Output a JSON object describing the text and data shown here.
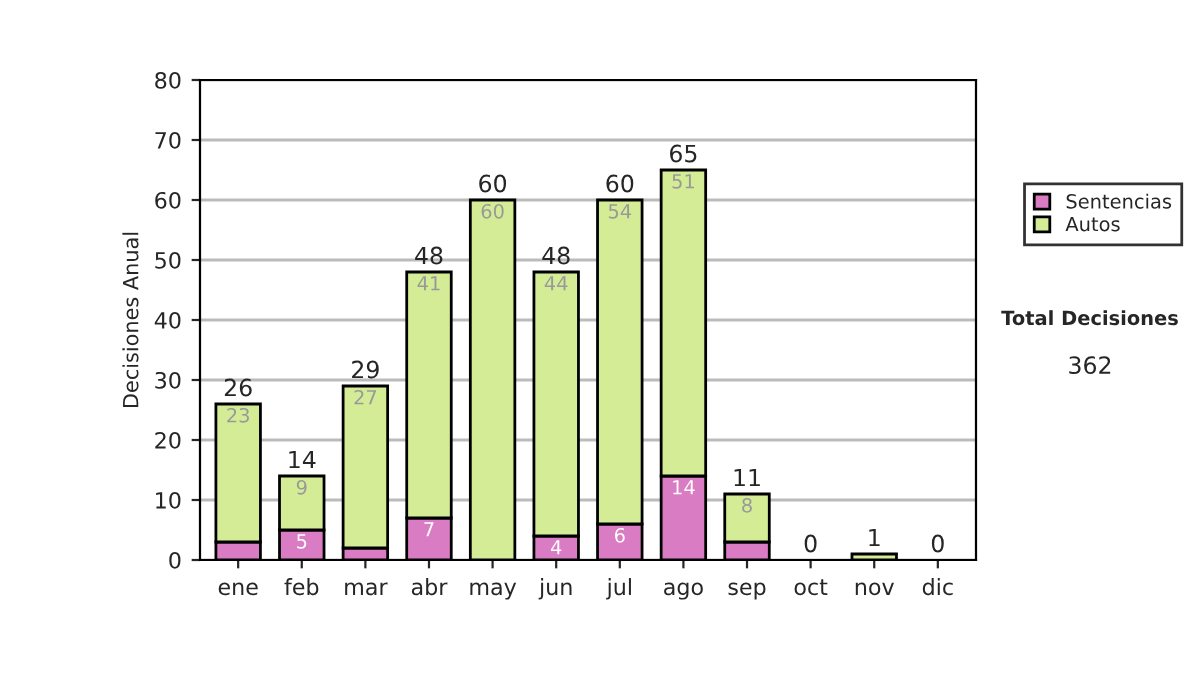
{
  "chart_data": {
    "type": "bar",
    "stacked": true,
    "ylabel": "Decisiones Anual",
    "categories": [
      "ene",
      "feb",
      "mar",
      "abr",
      "may",
      "jun",
      "jul",
      "ago",
      "sep",
      "oct",
      "nov",
      "dic"
    ],
    "series": [
      {
        "name": "Sentencias",
        "color": "#da7cc3",
        "values": [
          3,
          5,
          2,
          7,
          0,
          4,
          6,
          14,
          3,
          0,
          0,
          0
        ],
        "value_labels": [
          null,
          "5",
          null,
          "7",
          null,
          "4",
          "6",
          "14",
          null,
          null,
          null,
          null
        ]
      },
      {
        "name": "Autos",
        "color": "#d4ec96",
        "values": [
          23,
          9,
          27,
          41,
          60,
          44,
          54,
          51,
          8,
          0,
          1,
          0
        ],
        "value_labels": [
          "23",
          "9",
          "27",
          "41",
          "60",
          "44",
          "54",
          "51",
          "8",
          null,
          null,
          null
        ]
      }
    ],
    "totals": [
      "26",
      "14",
      "29",
      "48",
      "60",
      "48",
      "60",
      "65",
      "11",
      "0",
      "1",
      "0"
    ],
    "ylim": [
      0,
      80
    ],
    "yticks": [
      0,
      10,
      20,
      30,
      40,
      50,
      60,
      70,
      80
    ],
    "grid": "y",
    "legend": "right",
    "annotations": [
      "Total Decisiones",
      "362"
    ]
  }
}
